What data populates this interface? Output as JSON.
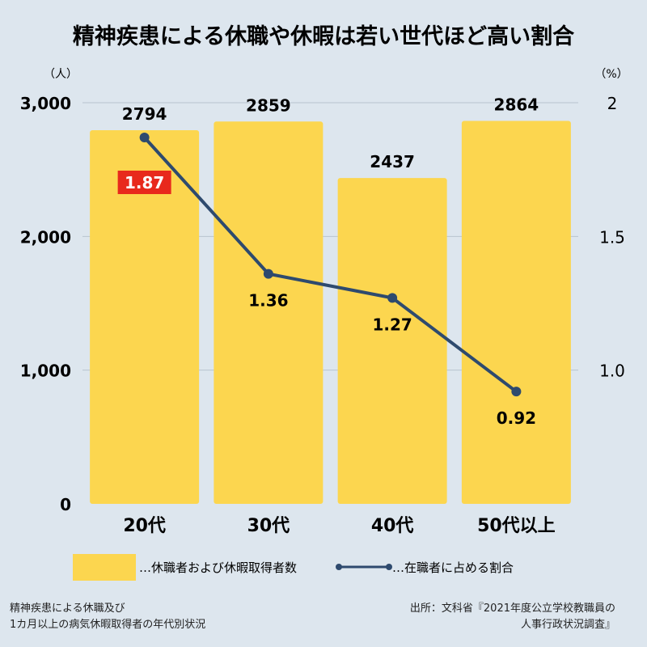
{
  "chart_data": {
    "type": "bar",
    "title": "精神疾患による休職や休暇は若い世代ほど高い割合",
    "categories": [
      "20代",
      "30代",
      "40代",
      "50代以上"
    ],
    "series": [
      {
        "name": "…休職者および休暇取得者数",
        "type": "bar",
        "axis": "left",
        "values": [
          2794,
          2859,
          2437,
          2864
        ],
        "color": "#fcd64f"
      },
      {
        "name": "…在職者に占める割合",
        "type": "line",
        "axis": "right",
        "values": [
          1.87,
          1.36,
          1.27,
          0.92
        ],
        "color": "#2e4a6e"
      }
    ],
    "left_axis": {
      "unit": "（人）",
      "ylim": [
        0,
        3000
      ],
      "ticks": [
        "0",
        "1,000",
        "2,000",
        "3,000"
      ],
      "tick_values": [
        0,
        1000,
        2000,
        3000
      ]
    },
    "right_axis": {
      "unit": "（%）",
      "ylim": [
        0.5,
        2
      ],
      "ticks": [
        "1.0",
        "1.5",
        "2"
      ],
      "tick_values": [
        1.0,
        1.5,
        2.0
      ]
    },
    "highlight": {
      "index": 0,
      "color": "#e8291c"
    },
    "grid": true,
    "legend_position": "bottom"
  },
  "footnote_left": [
    "精神疾患による休職及び",
    "1カ月以上の病気休暇取得者の年代別状況"
  ],
  "footnote_right": [
    "出所：文科省『2021年度公立学校教職員の",
    "人事行政状況調査』"
  ]
}
